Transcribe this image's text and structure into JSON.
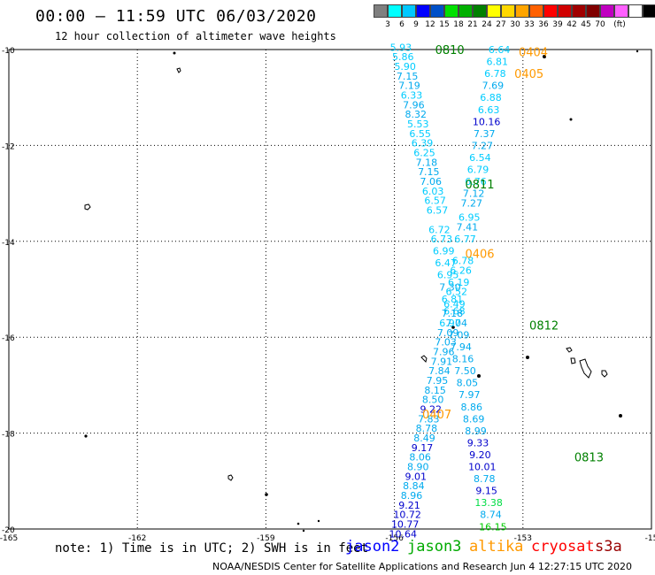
{
  "title": "00:00 – 11:59 UTC 06/03/2020",
  "subtitle": "12 hour collection of altimeter wave heights",
  "colorbar": {
    "colors": [
      "#7f7f7f",
      "#00ffff",
      "#00c8ff",
      "#0000ff",
      "#0050c8",
      "#00e000",
      "#00b000",
      "#008000",
      "#ffff00",
      "#ffd800",
      "#ffa500",
      "#ff6000",
      "#ff0000",
      "#d00000",
      "#a00000",
      "#800000",
      "#c000c0",
      "#ff60ff",
      "#ffffff",
      "#000000"
    ],
    "labels": [
      "3",
      "6",
      "9",
      "12",
      "15",
      "18",
      "21",
      "24",
      "27",
      "30",
      "33",
      "36",
      "39",
      "42",
      "45",
      "70",
      "(ft)"
    ]
  },
  "axes": {
    "lon_ticks": [
      "-165",
      "-162",
      "-159",
      "-156",
      "-153",
      "-15"
    ],
    "lat_ticks": [
      "-10",
      "-12",
      "-14",
      "-16",
      "-18",
      "-20"
    ]
  },
  "track_ids": [
    {
      "text": "0810",
      "x": -155.05,
      "y": -10.0,
      "color": "#008000"
    },
    {
      "text": "0404",
      "x": -153.1,
      "y": -10.05,
      "color": "#ff9900"
    },
    {
      "text": "0405",
      "x": -153.2,
      "y": -10.5,
      "color": "#ff9900"
    },
    {
      "text": "0811",
      "x": -154.35,
      "y": -12.8,
      "color": "#008000"
    },
    {
      "text": "0406",
      "x": -154.35,
      "y": -14.25,
      "color": "#ff9900"
    },
    {
      "text": "0812",
      "x": -152.85,
      "y": -15.75,
      "color": "#008000"
    },
    {
      "text": "0407",
      "x": -155.35,
      "y": -17.6,
      "color": "#ff9900"
    },
    {
      "text": "0813",
      "x": -151.8,
      "y": -18.5,
      "color": "#008000"
    }
  ],
  "obs": [
    {
      "v": "5.93",
      "x": -155.85,
      "y": -9.95,
      "c": "#00ccff"
    },
    {
      "v": "5.86",
      "x": -155.8,
      "y": -10.15,
      "c": "#00ccff"
    },
    {
      "v": "5.90",
      "x": -155.75,
      "y": -10.35,
      "c": "#00ccff"
    },
    {
      "v": "7.15",
      "x": -155.7,
      "y": -10.55,
      "c": "#00aaee"
    },
    {
      "v": "7.19",
      "x": -155.65,
      "y": -10.75,
      "c": "#00aaee"
    },
    {
      "v": "6.33",
      "x": -155.6,
      "y": -10.95,
      "c": "#00ccff"
    },
    {
      "v": "7.96",
      "x": -155.55,
      "y": -11.15,
      "c": "#00aaee"
    },
    {
      "v": "8.32",
      "x": -155.5,
      "y": -11.35,
      "c": "#00aaee"
    },
    {
      "v": "5.53",
      "x": -155.45,
      "y": -11.55,
      "c": "#00ccff"
    },
    {
      "v": "6.55",
      "x": -155.4,
      "y": -11.75,
      "c": "#00ccff"
    },
    {
      "v": "6.39",
      "x": -155.35,
      "y": -11.95,
      "c": "#00ccff"
    },
    {
      "v": "6.25",
      "x": -155.3,
      "y": -12.15,
      "c": "#00ccff"
    },
    {
      "v": "7.18",
      "x": -155.25,
      "y": -12.35,
      "c": "#00aaee"
    },
    {
      "v": "7.15",
      "x": -155.2,
      "y": -12.55,
      "c": "#00aaee"
    },
    {
      "v": "7.06",
      "x": -155.15,
      "y": -12.75,
      "c": "#00aaee"
    },
    {
      "v": "6.03",
      "x": -155.1,
      "y": -12.95,
      "c": "#00ccff"
    },
    {
      "v": "6.57",
      "x": -155.05,
      "y": -13.15,
      "c": "#00ccff"
    },
    {
      "v": "6.57",
      "x": -155.0,
      "y": -13.35,
      "c": "#00ccff"
    },
    {
      "v": "6.72",
      "x": -154.95,
      "y": -13.75,
      "c": "#00ccff"
    },
    {
      "v": "6.73",
      "x": -154.9,
      "y": -13.95,
      "c": "#00ccff"
    },
    {
      "v": "6.99",
      "x": -154.85,
      "y": -14.2,
      "c": "#00ccff"
    },
    {
      "v": "6.47",
      "x": -154.8,
      "y": -14.45,
      "c": "#00ccff"
    },
    {
      "v": "6.95",
      "x": -154.75,
      "y": -14.7,
      "c": "#00ccff"
    },
    {
      "v": "7.30",
      "x": -154.7,
      "y": -14.95,
      "c": "#00aaee"
    },
    {
      "v": "6.81",
      "x": -154.65,
      "y": -15.2,
      "c": "#00ccff"
    },
    {
      "v": "6.68",
      "x": -154.6,
      "y": -15.45,
      "c": "#00ccff"
    },
    {
      "v": "7.04",
      "x": -154.55,
      "y": -15.7,
      "c": "#00aaee"
    },
    {
      "v": "7.09",
      "x": -154.5,
      "y": -15.95,
      "c": "#00aaee"
    },
    {
      "v": "7.94",
      "x": -154.45,
      "y": -16.2,
      "c": "#00aaee"
    },
    {
      "v": "8.16",
      "x": -154.4,
      "y": -16.45,
      "c": "#00aaee"
    },
    {
      "v": "7.50",
      "x": -154.35,
      "y": -16.7,
      "c": "#00aaee"
    },
    {
      "v": "8.05",
      "x": -154.3,
      "y": -16.95,
      "c": "#00aaee"
    },
    {
      "v": "7.97",
      "x": -154.25,
      "y": -17.2,
      "c": "#00aaee"
    },
    {
      "v": "8.86",
      "x": -154.2,
      "y": -17.45,
      "c": "#00aaee"
    },
    {
      "v": "8.69",
      "x": -154.15,
      "y": -17.7,
      "c": "#00aaee"
    },
    {
      "v": "8.99",
      "x": -154.1,
      "y": -17.95,
      "c": "#00aaee"
    },
    {
      "v": "9.33",
      "x": -154.05,
      "y": -18.2,
      "c": "#0000cc"
    },
    {
      "v": "9.20",
      "x": -154.0,
      "y": -18.45,
      "c": "#0000cc"
    },
    {
      "v": "10.01",
      "x": -153.95,
      "y": -18.7,
      "c": "#0000cc"
    },
    {
      "v": "8.78",
      "x": -153.9,
      "y": -18.95,
      "c": "#00aaee"
    },
    {
      "v": "9.15",
      "x": -153.85,
      "y": -19.2,
      "c": "#0000cc"
    },
    {
      "v": "13.38",
      "x": -153.8,
      "y": -19.45,
      "c": "#00dd44"
    },
    {
      "v": "8.74",
      "x": -153.75,
      "y": -19.7,
      "c": "#00aaee"
    },
    {
      "v": "16.15",
      "x": -153.7,
      "y": -19.95,
      "c": "#00cc00"
    },
    {
      "v": "6.64",
      "x": -153.55,
      "y": -10.0,
      "c": "#00ccff"
    },
    {
      "v": "6.81",
      "x": -153.6,
      "y": -10.25,
      "c": "#00ccff"
    },
    {
      "v": "6.78",
      "x": -153.65,
      "y": -10.5,
      "c": "#00ccff"
    },
    {
      "v": "7.69",
      "x": -153.7,
      "y": -10.75,
      "c": "#00aaee"
    },
    {
      "v": "6.88",
      "x": -153.75,
      "y": -11.0,
      "c": "#00ccff"
    },
    {
      "v": "6.63",
      "x": -153.8,
      "y": -11.25,
      "c": "#00ccff"
    },
    {
      "v": "10.16",
      "x": -153.85,
      "y": -11.5,
      "c": "#0000cc"
    },
    {
      "v": "7.37",
      "x": -153.9,
      "y": -11.75,
      "c": "#00aaee"
    },
    {
      "v": "7.27",
      "x": -153.95,
      "y": -12.0,
      "c": "#00aaee"
    },
    {
      "v": "6.54",
      "x": -154.0,
      "y": -12.25,
      "c": "#00ccff"
    },
    {
      "v": "6.79",
      "x": -154.05,
      "y": -12.5,
      "c": "#00ccff"
    },
    {
      "v": "6.76",
      "x": -154.1,
      "y": -12.75,
      "c": "#00ccff"
    },
    {
      "v": "7.12",
      "x": -154.15,
      "y": -13.0,
      "c": "#00aaee"
    },
    {
      "v": "7.27",
      "x": -154.2,
      "y": -13.2,
      "c": "#00aaee"
    },
    {
      "v": "6.95",
      "x": -154.25,
      "y": -13.5,
      "c": "#00ccff"
    },
    {
      "v": "7.41",
      "x": -154.3,
      "y": -13.7,
      "c": "#00aaee"
    },
    {
      "v": "6.77",
      "x": -154.35,
      "y": -13.95,
      "c": "#00ccff"
    },
    {
      "v": "6.78",
      "x": -154.4,
      "y": -14.4,
      "c": "#00ccff"
    },
    {
      "v": "6.26",
      "x": -154.45,
      "y": -14.6,
      "c": "#00ccff"
    },
    {
      "v": "6.19",
      "x": -154.5,
      "y": -14.85,
      "c": "#00ccff"
    },
    {
      "v": "6.52",
      "x": -154.55,
      "y": -15.05,
      "c": "#00ccff"
    },
    {
      "v": "6.49",
      "x": -154.6,
      "y": -15.3,
      "c": "#00ccff"
    },
    {
      "v": "7.18",
      "x": -154.65,
      "y": -15.5,
      "c": "#00aaee"
    },
    {
      "v": "6.97",
      "x": -154.7,
      "y": -15.7,
      "c": "#00ccff"
    },
    {
      "v": "7.09",
      "x": -154.75,
      "y": -15.9,
      "c": "#00aaee"
    },
    {
      "v": "7.03",
      "x": -154.8,
      "y": -16.1,
      "c": "#00aaee"
    },
    {
      "v": "7.96",
      "x": -154.85,
      "y": -16.3,
      "c": "#00aaee"
    },
    {
      "v": "7.91",
      "x": -154.9,
      "y": -16.5,
      "c": "#00aaee"
    },
    {
      "v": "7.84",
      "x": -154.95,
      "y": -16.7,
      "c": "#00aaee"
    },
    {
      "v": "7.95",
      "x": -155.0,
      "y": -16.9,
      "c": "#00aaee"
    },
    {
      "v": "8.15",
      "x": -155.05,
      "y": -17.1,
      "c": "#00aaee"
    },
    {
      "v": "8.50",
      "x": -155.1,
      "y": -17.3,
      "c": "#00aaee"
    },
    {
      "v": "9.22",
      "x": -155.15,
      "y": -17.5,
      "c": "#0000cc"
    },
    {
      "v": "7.83",
      "x": -155.2,
      "y": -17.7,
      "c": "#00aaee"
    },
    {
      "v": "8.78",
      "x": -155.25,
      "y": -17.9,
      "c": "#00aaee"
    },
    {
      "v": "8.49",
      "x": -155.3,
      "y": -18.1,
      "c": "#00aaee"
    },
    {
      "v": "9.17",
      "x": -155.35,
      "y": -18.3,
      "c": "#0000cc"
    },
    {
      "v": "8.06",
      "x": -155.4,
      "y": -18.5,
      "c": "#00aaee"
    },
    {
      "v": "8.90",
      "x": -155.45,
      "y": -18.7,
      "c": "#00aaee"
    },
    {
      "v": "9.01",
      "x": -155.5,
      "y": -18.9,
      "c": "#0000cc"
    },
    {
      "v": "8.84",
      "x": -155.55,
      "y": -19.1,
      "c": "#00aaee"
    },
    {
      "v": "8.96",
      "x": -155.6,
      "y": -19.3,
      "c": "#00aaee"
    },
    {
      "v": "9.21",
      "x": -155.65,
      "y": -19.5,
      "c": "#0000cc"
    },
    {
      "v": "10.72",
      "x": -155.7,
      "y": -19.7,
      "c": "#0000cc"
    },
    {
      "v": "10.77",
      "x": -155.75,
      "y": -19.9,
      "c": "#0000cc"
    },
    {
      "v": "10.64",
      "x": -155.8,
      "y": -20.1,
      "c": "#0000cc"
    }
  ],
  "footer": {
    "note": "note: 1) Time is in UTC; 2) SWH is in feet",
    "satellites": [
      {
        "name": "jason2",
        "color": "#0000ff"
      },
      {
        "name": "jason3",
        "color": "#00aa00"
      },
      {
        "name": "altika",
        "color": "#ff9900"
      },
      {
        "name": "cryosat",
        "color": "#ff0000"
      },
      {
        "name": "s3a",
        "color": "#990000"
      }
    ],
    "credit": "NOAA/NESDIS Center for Satellite Applications and Research   Jun  4 12:27:15 UTC 2020"
  }
}
